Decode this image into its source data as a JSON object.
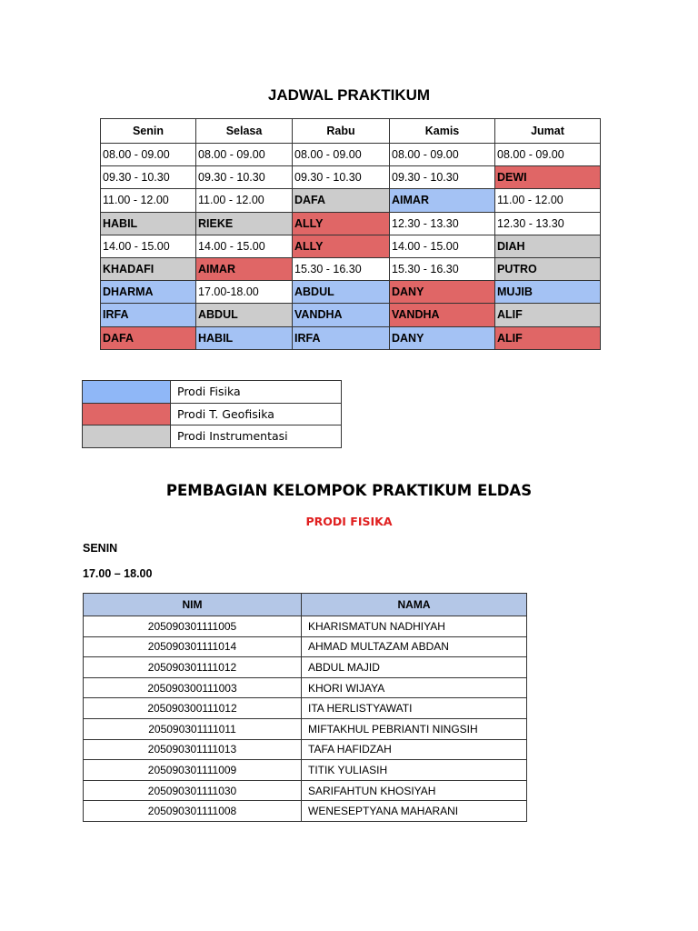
{
  "title": "JADWAL PRAKTIKUM",
  "colors": {
    "b": "#a4c2f4",
    "r": "#e06666",
    "g": "#cccccc"
  },
  "schedule": {
    "headers": [
      "Senin",
      "Selasa",
      "Rabu",
      "Kamis",
      "Jumat"
    ],
    "rows": [
      [
        [
          "08.00 - 09.00",
          "w"
        ],
        [
          "08.00 - 09.00",
          "w"
        ],
        [
          "08.00 - 09.00",
          "w"
        ],
        [
          "08.00 - 09.00",
          "w"
        ],
        [
          "08.00 - 09.00",
          "w"
        ]
      ],
      [
        [
          "09.30 - 10.30",
          "w"
        ],
        [
          "09.30 - 10.30",
          "w"
        ],
        [
          "09.30 - 10.30",
          "w"
        ],
        [
          "09.30 - 10.30",
          "w"
        ],
        [
          "DEWI",
          "r"
        ]
      ],
      [
        [
          "11.00 - 12.00",
          "w"
        ],
        [
          "11.00 - 12.00",
          "w"
        ],
        [
          "DAFA",
          "g"
        ],
        [
          "AIMAR",
          "b"
        ],
        [
          "11.00 - 12.00",
          "w"
        ]
      ],
      [
        [
          "HABIL",
          "g"
        ],
        [
          "RIEKE",
          "g"
        ],
        [
          "ALLY",
          "r"
        ],
        [
          "12.30 - 13.30",
          "w"
        ],
        [
          "12.30 - 13.30",
          "w"
        ]
      ],
      [
        [
          "14.00 - 15.00",
          "w"
        ],
        [
          "14.00 - 15.00",
          "w"
        ],
        [
          "ALLY",
          "r"
        ],
        [
          "14.00 - 15.00",
          "w"
        ],
        [
          "DIAH",
          "g"
        ]
      ],
      [
        [
          "KHADAFI",
          "g"
        ],
        [
          "AIMAR",
          "r"
        ],
        [
          "15.30 - 16.30",
          "w"
        ],
        [
          "15.30 - 16.30",
          "w"
        ],
        [
          "PUTRO",
          "g"
        ]
      ],
      [
        [
          "DHARMA",
          "b"
        ],
        [
          "17.00-18.00",
          "w"
        ],
        [
          "ABDUL",
          "b"
        ],
        [
          "DANY",
          "r"
        ],
        [
          "MUJIB",
          "b"
        ]
      ],
      [
        [
          "IRFA",
          "b"
        ],
        [
          "ABDUL",
          "g"
        ],
        [
          "VANDHA",
          "b"
        ],
        [
          "VANDHA",
          "r"
        ],
        [
          "ALIF",
          "g"
        ]
      ],
      [
        [
          "DAFA",
          "r"
        ],
        [
          "HABIL",
          "b"
        ],
        [
          "IRFA",
          "b"
        ],
        [
          "DANY",
          "b"
        ],
        [
          "ALIF",
          "r"
        ]
      ]
    ]
  },
  "legend": [
    {
      "color": "b",
      "label": "Prodi Fisika"
    },
    {
      "color": "r",
      "label": "Prodi T. Geofisika"
    },
    {
      "color": "g",
      "label": "Prodi Instrumentasi"
    }
  ],
  "section_title": "PEMBAGIAN KELOMPOK PRAKTIKUM ELDAS",
  "prodi": "PRODI FISIKA",
  "day": "SENIN",
  "time": "17.00 – 18.00",
  "group_table": {
    "headers": [
      "NIM",
      "NAMA"
    ],
    "rows": [
      [
        "205090301111005",
        "KHARISMATUN NADHIYAH"
      ],
      [
        "205090301111014",
        "AHMAD MULTAZAM ABDAN"
      ],
      [
        "205090301111012",
        "ABDUL MAJID"
      ],
      [
        "205090300111003",
        "KHORI WIJAYA"
      ],
      [
        "205090300111012",
        "ITA HERLISTYAWATI"
      ],
      [
        "205090301111011",
        "MIFTAKHUL PEBRIANTI NINGSIH"
      ],
      [
        "205090301111013",
        "TAFA HAFIDZAH"
      ],
      [
        "205090301111009",
        "TITIK YULIASIH"
      ],
      [
        "205090301111030",
        "SARIFAHTUN KHOSIYAH"
      ],
      [
        "205090301111008",
        "WENESEPTYANA MAHARANI"
      ]
    ]
  }
}
